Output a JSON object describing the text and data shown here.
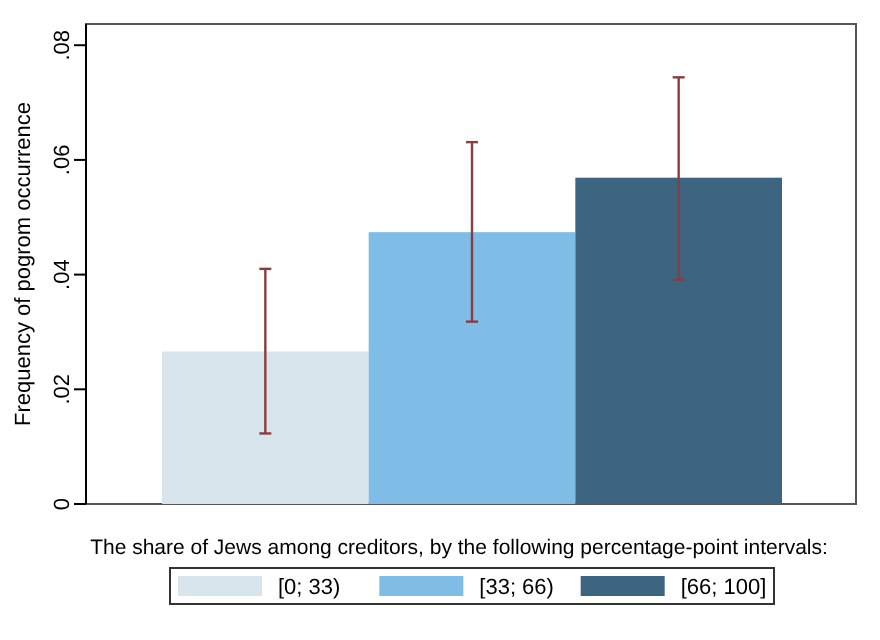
{
  "chart_data": {
    "type": "bar",
    "xlabel": "The share of Jews among creditors, by the following percentage-point intervals:",
    "ylabel": "Frequency of pogrom occurrence",
    "categories": [
      null
    ],
    "series": [
      {
        "name": "[0; 33)",
        "color": "#d9e5ec",
        "values": [
          0.0266
        ],
        "errors": [
          [
            0.0123,
            0.041
          ]
        ]
      },
      {
        "name": "[33; 66)",
        "color": "#7fbde6",
        "values": [
          0.0474
        ],
        "errors": [
          [
            0.0318,
            0.0631
          ]
        ]
      },
      {
        "name": "[66; 100]",
        "color": "#3d6481",
        "values": [
          0.0569
        ],
        "errors": [
          [
            0.0391,
            0.0744
          ]
        ]
      }
    ],
    "ylim": [
      0,
      0.0837
    ],
    "yticks": [
      0,
      {
        "value": 0.02,
        "label": ".02"
      },
      {
        "value": 0.04,
        "label": ".04"
      },
      {
        "value": 0.06,
        "label": ".06"
      },
      {
        "value": 0.08,
        "label": ".08"
      }
    ],
    "grid": false,
    "legend": "bottom"
  }
}
